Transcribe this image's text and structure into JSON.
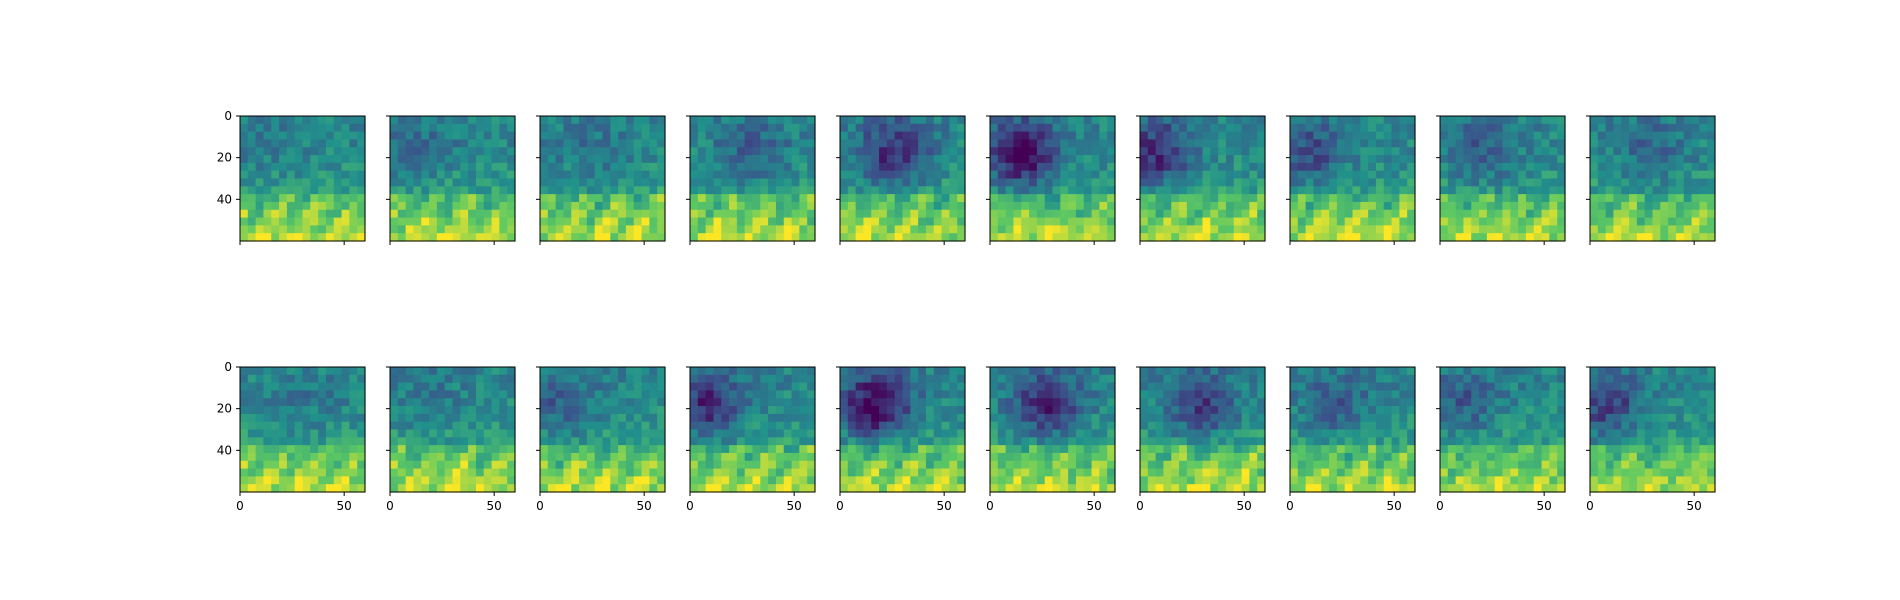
{
  "chart_data": {
    "type": "heatmap",
    "colormap": "viridis",
    "colormap_stops": [
      "#440154",
      "#3b528b",
      "#21918c",
      "#5ec962",
      "#fde725"
    ],
    "layout": {
      "rows": 2,
      "cols": 10
    },
    "shared_y_ticks": true,
    "shared_x_ticks": true,
    "xlim": [
      0,
      60
    ],
    "ylim": [
      60,
      0
    ],
    "y_tick_values": [
      0,
      20,
      40
    ],
    "y_tick_labels": [
      "0",
      "20",
      "40"
    ],
    "x_tick_values": [
      0,
      50
    ],
    "x_tick_labels": [
      "0",
      "50"
    ],
    "grid_size": 16,
    "panels": [
      {
        "row": 0,
        "col": 0,
        "seed": 11,
        "dark": 0.05,
        "bright_band": 0.85
      },
      {
        "row": 0,
        "col": 1,
        "seed": 12,
        "dark": 0.1,
        "bright_band": 0.8
      },
      {
        "row": 0,
        "col": 2,
        "seed": 13,
        "dark": 0.08,
        "bright_band": 0.85
      },
      {
        "row": 0,
        "col": 3,
        "seed": 14,
        "dark": 0.15,
        "bright_band": 0.85
      },
      {
        "row": 0,
        "col": 4,
        "seed": 15,
        "dark": 0.3,
        "bright_band": 0.8
      },
      {
        "row": 0,
        "col": 5,
        "seed": 16,
        "dark": 0.4,
        "bright_band": 0.7
      },
      {
        "row": 0,
        "col": 6,
        "seed": 17,
        "dark": 0.3,
        "bright_band": 0.8
      },
      {
        "row": 0,
        "col": 7,
        "seed": 18,
        "dark": 0.2,
        "bright_band": 0.85
      },
      {
        "row": 0,
        "col": 8,
        "seed": 19,
        "dark": 0.15,
        "bright_band": 0.75
      },
      {
        "row": 0,
        "col": 9,
        "seed": 20,
        "dark": 0.12,
        "bright_band": 0.65
      },
      {
        "row": 1,
        "col": 0,
        "seed": 21,
        "dark": 0.06,
        "bright_band": 0.85
      },
      {
        "row": 1,
        "col": 1,
        "seed": 22,
        "dark": 0.06,
        "bright_band": 0.85
      },
      {
        "row": 1,
        "col": 2,
        "seed": 23,
        "dark": 0.15,
        "bright_band": 0.85
      },
      {
        "row": 1,
        "col": 3,
        "seed": 24,
        "dark": 0.3,
        "bright_band": 0.8
      },
      {
        "row": 1,
        "col": 4,
        "seed": 25,
        "dark": 0.4,
        "bright_band": 0.75
      },
      {
        "row": 1,
        "col": 5,
        "seed": 26,
        "dark": 0.3,
        "bright_band": 0.8
      },
      {
        "row": 1,
        "col": 6,
        "seed": 27,
        "dark": 0.25,
        "bright_band": 0.85
      },
      {
        "row": 1,
        "col": 7,
        "seed": 28,
        "dark": 0.15,
        "bright_band": 0.75
      },
      {
        "row": 1,
        "col": 8,
        "seed": 29,
        "dark": 0.15,
        "bright_band": 0.65
      },
      {
        "row": 1,
        "col": 9,
        "seed": 30,
        "dark": 0.25,
        "bright_band": 0.65
      }
    ]
  }
}
